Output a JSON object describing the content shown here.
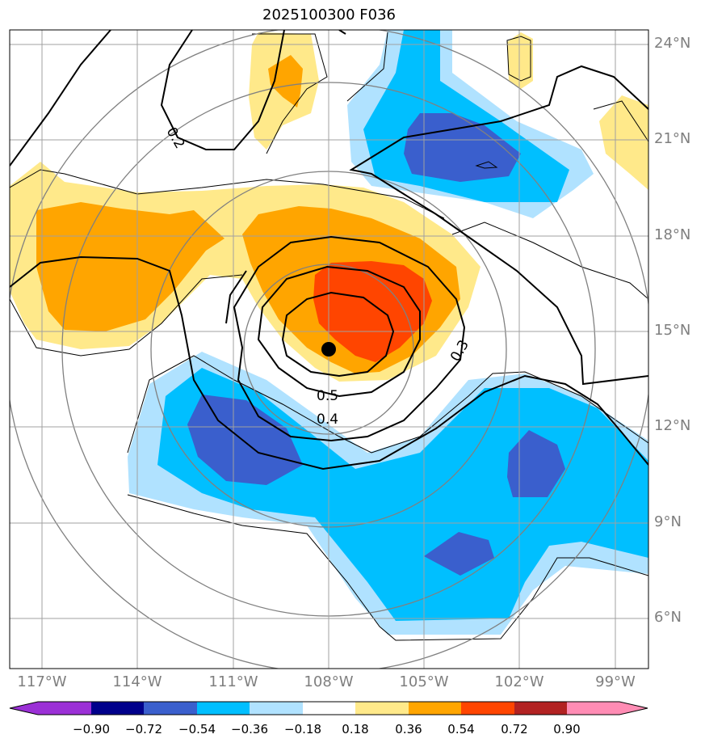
{
  "title": "2025100300 F036",
  "latitude_labels": [
    "24°N",
    "21°N",
    "18°N",
    "15°N",
    "12°N",
    "9°N",
    "6°N"
  ],
  "longitude_labels": [
    "117°W",
    "114°W",
    "111°W",
    "108°W",
    "105°W",
    "102°W",
    "99°W"
  ],
  "contour_labels": [
    "0.2",
    "0.3",
    "0.4",
    "0.5"
  ],
  "colorbar": {
    "tick_labels": [
      "−0.90",
      "−0.72",
      "−0.54",
      "−0.36",
      "−0.18",
      "0.18",
      "0.36",
      "0.54",
      "0.72",
      "0.90"
    ],
    "colors": [
      "#9b30d6",
      "#00008b",
      "#3a5fcd",
      "#00bfff",
      "#b0e2ff",
      "#ffffff",
      "#ffe98a",
      "#ffa500",
      "#ff4500",
      "#b22222",
      "#ff8cb4"
    ],
    "extend": "both"
  },
  "storm_center": {
    "lon": -108.0,
    "lat": 14.45
  },
  "fill_colors": {
    "light_blue": "#b0e2ff",
    "blue": "#00bfff",
    "dark_blue": "#3a5fcd",
    "yellow": "#ffe98a",
    "orange": "#ffa500",
    "red": "#ff4500"
  }
}
